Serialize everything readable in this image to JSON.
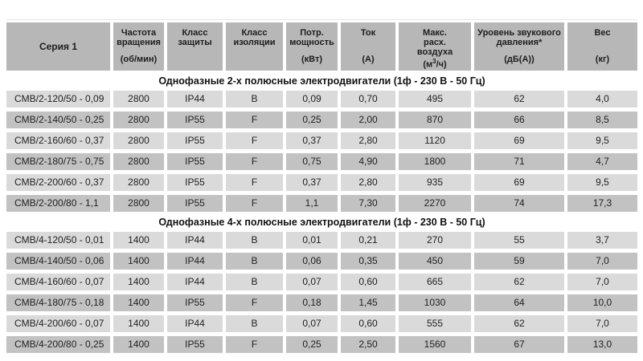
{
  "table": {
    "colors": {
      "header_bg": "#b7b7b7",
      "row_light": "#dadada",
      "row_dark": "#c2c2c2",
      "text": "#222222",
      "section_text": "#111111"
    },
    "columns": [
      {
        "title": "Серия 1",
        "unit": ""
      },
      {
        "title": "Частота\nвращения",
        "unit": "(об/мин)"
      },
      {
        "title": "Класс\nзащиты",
        "unit": ""
      },
      {
        "title": "Класс\nизоляции",
        "unit": ""
      },
      {
        "title": "Потр.\nмощность",
        "unit": "(кВт)"
      },
      {
        "title": "Ток",
        "unit": "(А)"
      },
      {
        "title": "Макс.\nрасх.\nвоздуха",
        "unit": "(м³/ч)"
      },
      {
        "title": "Уровень звукового\nдавления*",
        "unit": "(дБ(А))"
      },
      {
        "title": "Вес",
        "unit": "(кг)"
      }
    ],
    "sections": [
      {
        "title": "Однофазные 2-х полюсные электродвигатели (1ф - 230 В - 50 Гц)",
        "rows": [
          [
            "CMB/2-120/50 - 0,09",
            "2800",
            "IP44",
            "B",
            "0,09",
            "0,70",
            "495",
            "62",
            "4,0"
          ],
          [
            "CMB/2-140/50 - 0,25",
            "2800",
            "IP55",
            "F",
            "0,25",
            "2,00",
            "870",
            "66",
            "8,5"
          ],
          [
            "CMB/2-160/60 - 0,37",
            "2800",
            "IP55",
            "F",
            "0,37",
            "2,80",
            "1120",
            "69",
            "9,5"
          ],
          [
            "CMB/2-180/75 - 0,75",
            "2800",
            "IP55",
            "F",
            "0,75",
            "4,90",
            "1800",
            "71",
            "4,7"
          ],
          [
            "CMB/2-200/60 - 0,37",
            "2800",
            "IP55",
            "F",
            "0,37",
            "2,80",
            "935",
            "69",
            "9,5"
          ],
          [
            "CMB/2-200/80 - 1,1",
            "2800",
            "IP55",
            "F",
            "1,1",
            "7,30",
            "2270",
            "74",
            "17,3"
          ]
        ]
      },
      {
        "title": "Однофазные 4-х полюсные электродвигатели (1ф - 230 В - 50 Гц)",
        "rows": [
          [
            "CMB/4-120/50 - 0,01",
            "1400",
            "IP44",
            "B",
            "0,01",
            "0,21",
            "270",
            "55",
            "3,7"
          ],
          [
            "CMB/4-140/50 - 0,06",
            "1400",
            "IP44",
            "B",
            "0,06",
            "0,35",
            "450",
            "59",
            "7,0"
          ],
          [
            "CMB/4-160/60 - 0,07",
            "1400",
            "IP44",
            "B",
            "0,07",
            "0,60",
            "665",
            "62",
            "7,0"
          ],
          [
            "CMB/4-180/75 - 0,18",
            "1400",
            "IP55",
            "F",
            "0,18",
            "1,45",
            "1030",
            "64",
            "10,0"
          ],
          [
            "CMB/4-200/60 - 0,07",
            "1400",
            "IP44",
            "B",
            "0,07",
            "0,60",
            "555",
            "62",
            "7,0"
          ],
          [
            "CMB/4-200/80 - 0,25",
            "1400",
            "IP55",
            "F",
            "0,25",
            "2,50",
            "1560",
            "67",
            "13,0"
          ]
        ]
      }
    ]
  }
}
